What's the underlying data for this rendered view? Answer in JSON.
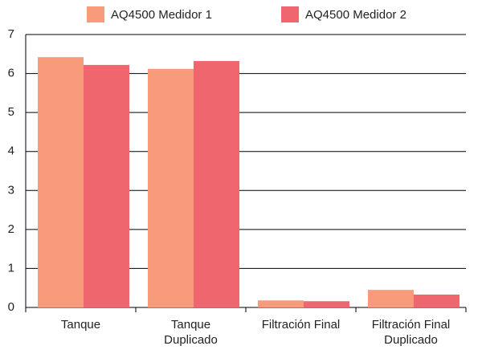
{
  "chart_data": {
    "type": "bar",
    "categories": [
      "Tanque",
      "Tanque\nDuplicado",
      "Filtración Final",
      "Filtración Final\nDuplicado"
    ],
    "series": [
      {
        "name": "AQ4500 Medidor 1",
        "color": "#f79b7a",
        "values": [
          6.42,
          6.12,
          0.18,
          0.45
        ]
      },
      {
        "name": "AQ4500 Medidor 2",
        "color": "#f0666e",
        "values": [
          6.22,
          6.32,
          0.16,
          0.33
        ]
      }
    ],
    "ylim": [
      0,
      7
    ],
    "yticks": [
      0,
      1,
      2,
      3,
      4,
      5,
      6,
      7
    ],
    "grid": true,
    "legend": "top"
  }
}
